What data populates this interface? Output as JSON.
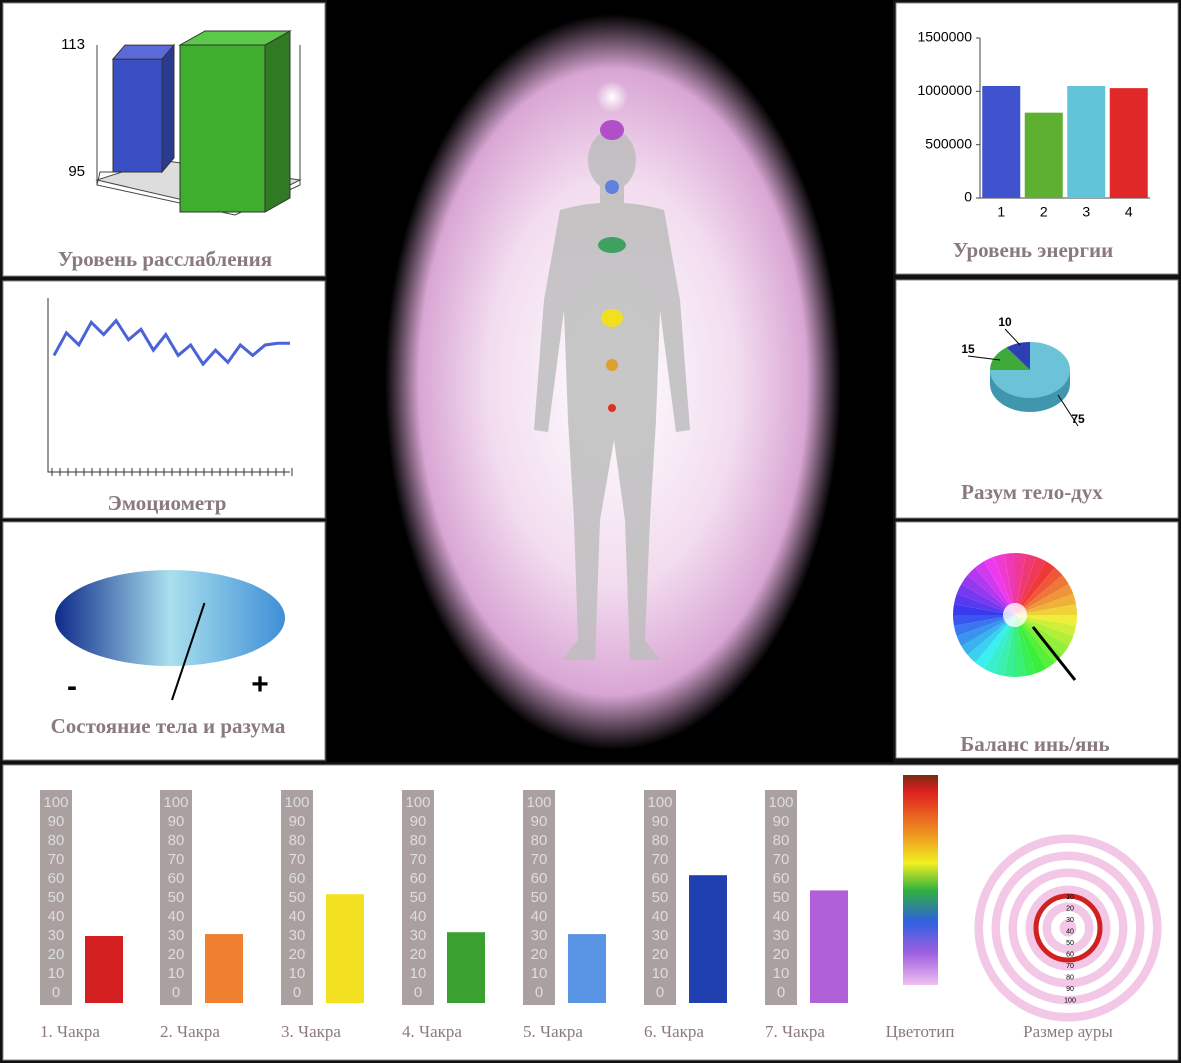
{
  "chart_data": [
    {
      "type": "bar3d",
      "title": "Уровень расслабления",
      "values": [
        111,
        113
      ],
      "colors": [
        "#3a4fc4",
        "#3fae2e"
      ],
      "ylim": [
        95,
        113
      ],
      "yticks": [
        95,
        113
      ]
    },
    {
      "type": "bar",
      "title": "Уровень энергии",
      "categories": [
        "1",
        "2",
        "3",
        "4"
      ],
      "values": [
        1050000,
        800000,
        1050000,
        1030000
      ],
      "colors": [
        "#3f52cf",
        "#5db030",
        "#62c4d8",
        "#e02828"
      ],
      "ylim": [
        0,
        1500000
      ],
      "yticks": [
        0,
        500000,
        1000000,
        1500000
      ]
    },
    {
      "type": "line",
      "title": "Эмоциометр",
      "values": [
        67,
        80,
        73,
        86,
        79,
        87,
        76,
        82,
        70,
        79,
        67,
        73,
        62,
        70,
        63,
        73,
        67,
        73,
        74,
        74
      ],
      "color": "#4a63d8",
      "ylim": [
        0,
        100
      ]
    },
    {
      "type": "pie",
      "title": "Разум тело-дух",
      "values": [
        10,
        15,
        75
      ],
      "colors": [
        "#2c3fb5",
        "#3faa3a",
        "#6cc3d8"
      ]
    },
    {
      "type": "gauge",
      "title": "Состояние тела и разума",
      "labels": [
        "-",
        "+"
      ],
      "value": 65,
      "xlim": [
        0,
        100
      ]
    },
    {
      "type": "wheel",
      "title": "Баланс инь/янь"
    },
    {
      "type": "chakra",
      "categories": [
        "1. Чакра",
        "2. Чакра",
        "3. Чакра",
        "4. Чакра",
        "5. Чакра",
        "6. Чакра",
        "7. Чакра"
      ],
      "values": [
        30,
        31,
        52,
        32,
        31,
        62,
        54
      ],
      "colors": [
        "#d42020",
        "#f08030",
        "#f3e020",
        "#3aa030",
        "#5a94e4",
        "#2040b0",
        "#b060d8"
      ],
      "ylim": [
        0,
        100
      ],
      "yticks": [
        0,
        10,
        20,
        30,
        40,
        50,
        60,
        70,
        80,
        90,
        100
      ]
    }
  ],
  "color_type": {
    "label": "Цветотип"
  },
  "aura": {
    "label": "Размер ауры",
    "rings": [
      "10",
      "20",
      "30",
      "40",
      "50",
      "60",
      "70",
      "80",
      "90",
      "100"
    ]
  }
}
